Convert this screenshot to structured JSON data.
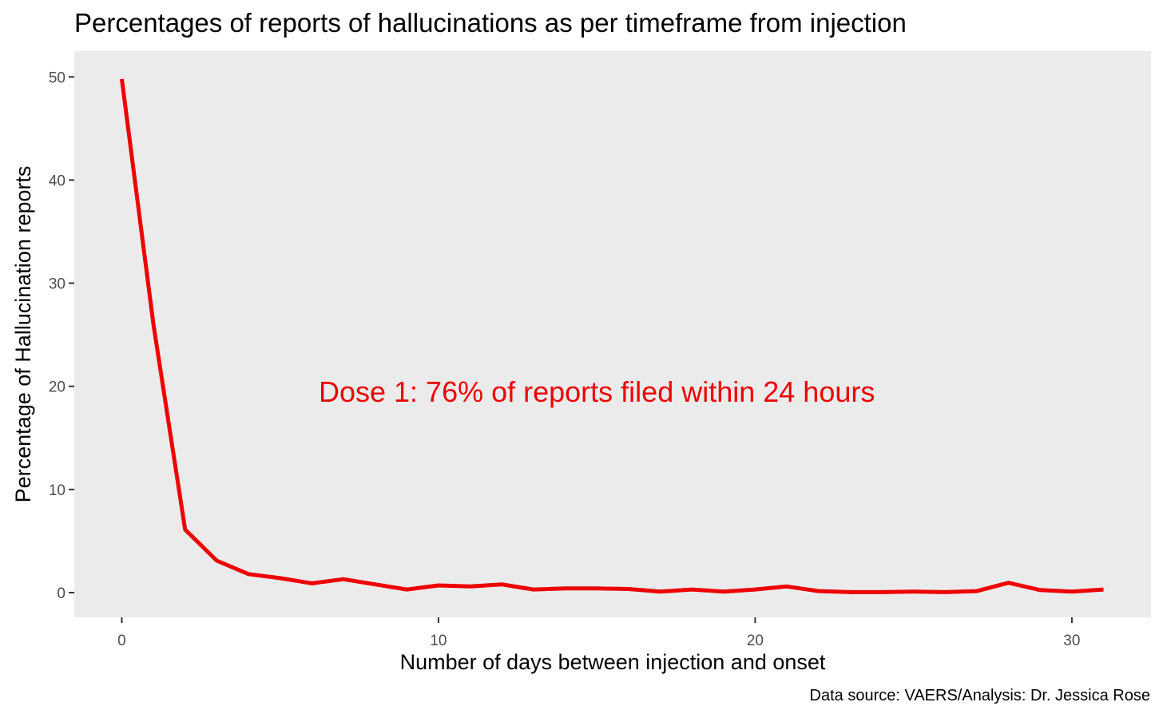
{
  "chart_data": {
    "type": "line",
    "title": "Percentages of reports of hallucinations as per timeframe from injection",
    "xlabel": "Number of days between injection and onset",
    "ylabel": "Percentage of Hallucination reports",
    "caption": "Data source: VAERS/Analysis: Dr. Jessica Rose",
    "annotation": {
      "text": "Dose 1: 76% of reports filed within 24 hours",
      "x": 15,
      "y": 19.5,
      "color": "#ee0000"
    },
    "xlim": [
      -1.5,
      32.5
    ],
    "ylim": [
      -2.4,
      52.5
    ],
    "xticks": [
      0,
      10,
      20,
      30
    ],
    "yticks": [
      0,
      10,
      20,
      30,
      40,
      50
    ],
    "grid": false,
    "panel_background": "#ebebeb",
    "series": [
      {
        "color": "#ee0000",
        "x": [
          0,
          1,
          2,
          3,
          4,
          5,
          6,
          7,
          8,
          9,
          10,
          11,
          12,
          13,
          14,
          15,
          16,
          17,
          18,
          19,
          20,
          21,
          22,
          23,
          24,
          25,
          26,
          27,
          28,
          29,
          30,
          31
        ],
        "values": [
          49.8,
          26.0,
          6.1,
          3.1,
          1.8,
          1.4,
          0.9,
          1.3,
          0.8,
          0.3,
          0.7,
          0.6,
          0.8,
          0.3,
          0.4,
          0.4,
          0.35,
          0.1,
          0.3,
          0.1,
          0.3,
          0.6,
          0.15,
          0.05,
          0.05,
          0.1,
          0.05,
          0.15,
          0.95,
          0.25,
          0.1,
          0.3
        ]
      }
    ]
  }
}
